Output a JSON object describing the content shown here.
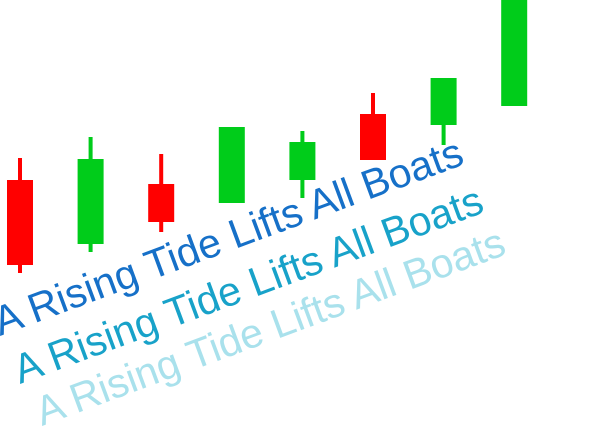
{
  "chart_data": {
    "type": "candlestick",
    "caption": "A Rising Tide Lifts All Boats",
    "open": [
      251,
      187,
      247,
      228,
      251,
      317,
      306,
      325
    ],
    "high": [
      273,
      294,
      277,
      304,
      300,
      338,
      353,
      431
    ],
    "low": [
      158,
      179,
      199,
      228,
      233,
      271,
      286,
      325
    ],
    "close": [
      166,
      272,
      209,
      304,
      289,
      271,
      353,
      431
    ],
    "ylim": [
      0,
      431
    ],
    "up_color": "#00cc1a",
    "down_color": "#ff0000"
  }
}
